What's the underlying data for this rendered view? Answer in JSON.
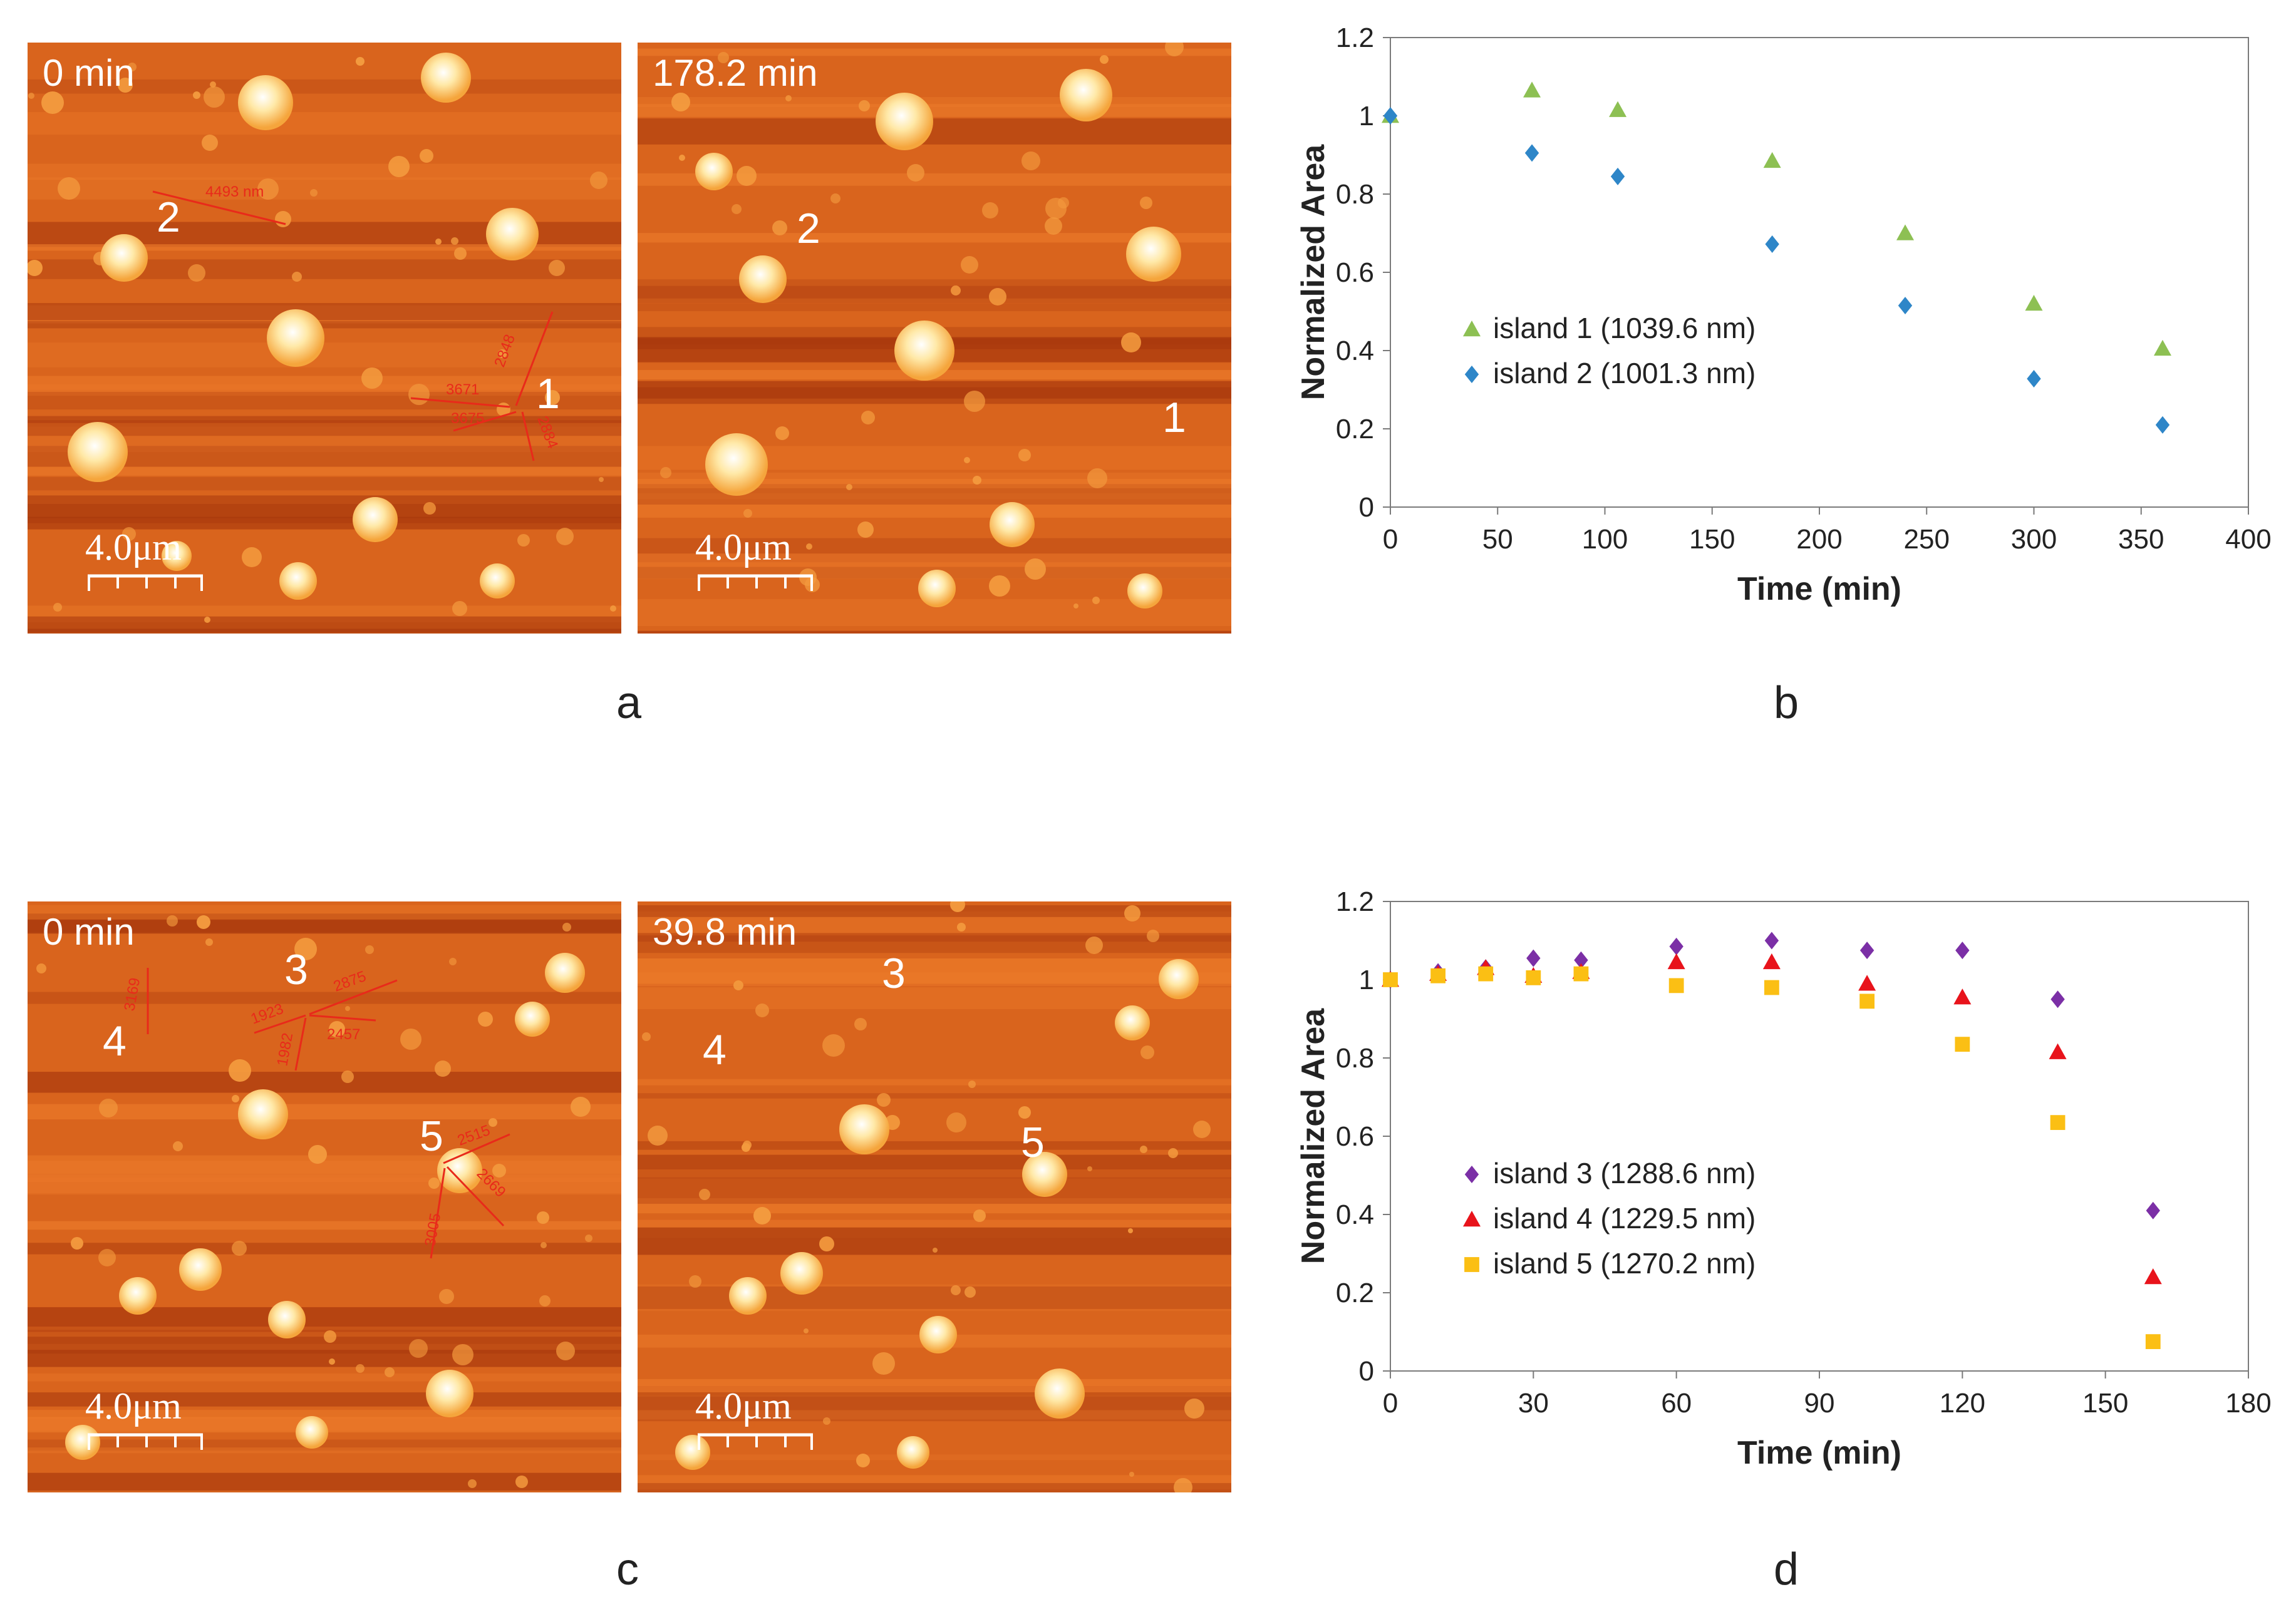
{
  "panels": {
    "a": {
      "letter": "a",
      "left": {
        "time": "0 min",
        "labels": [
          "2",
          "1"
        ],
        "scale": "4.0μm",
        "annotations": [
          "4493 nm",
          "3671",
          "2848",
          "3675",
          "2884"
        ]
      },
      "right": {
        "time": "178.2 min",
        "labels": [
          "2",
          "1"
        ],
        "scale": "4.0μm"
      }
    },
    "b": {
      "letter": "b"
    },
    "c": {
      "letter": "c",
      "left": {
        "time": "0 min",
        "labels": [
          "3",
          "4",
          "5"
        ],
        "scale": "4.0μm",
        "annotations": [
          "1923",
          "2457",
          "2875",
          "3169",
          "1982",
          "2515",
          "2669",
          "3005"
        ]
      },
      "right": {
        "time": "39.8 min",
        "labels": [
          "3",
          "4",
          "5"
        ],
        "scale": "4.0μm"
      }
    },
    "d": {
      "letter": "d"
    }
  },
  "chart_data": [
    {
      "id": "b",
      "type": "scatter",
      "title": "",
      "xlabel": "Time (min)",
      "ylabel": "Normalized Area",
      "xlim": [
        0,
        400
      ],
      "ylim": [
        0,
        1.2
      ],
      "xticks": [
        "0",
        "50",
        "100",
        "150",
        "200",
        "250",
        "300",
        "350",
        "400"
      ],
      "yticks": [
        "0",
        "0.2",
        "0.4",
        "0.6",
        "0.8",
        "1",
        "1.2"
      ],
      "legend_position": "center-left",
      "series": [
        {
          "name": "island 1 (1039.6 nm)",
          "marker": "triangle",
          "color": "#8dc053",
          "x": [
            0,
            66,
            106,
            178,
            240,
            300,
            360
          ],
          "y": [
            1.0,
            1.065,
            1.015,
            0.885,
            0.7,
            0.52,
            0.405
          ]
        },
        {
          "name": "island 2 (1001.3 nm)",
          "marker": "diamond",
          "color": "#2e86c8",
          "x": [
            0,
            66,
            106,
            178,
            240,
            300,
            360
          ],
          "y": [
            1.0,
            0.905,
            0.845,
            0.672,
            0.515,
            0.328,
            0.21
          ]
        }
      ]
    },
    {
      "id": "d",
      "type": "scatter",
      "title": "",
      "xlabel": "Time (min)",
      "ylabel": "Normalized Area",
      "xlim": [
        0,
        180
      ],
      "ylim": [
        0,
        1.2
      ],
      "xticks": [
        "0",
        "30",
        "60",
        "90",
        "120",
        "150",
        "180"
      ],
      "yticks": [
        "0",
        "0.2",
        "0.4",
        "0.6",
        "0.8",
        "1",
        "1.2"
      ],
      "legend_position": "center-left",
      "series": [
        {
          "name": "island 3 (1288.6 nm)",
          "marker": "diamond",
          "color": "#7b2fa6",
          "x": [
            0,
            10,
            20,
            30,
            40,
            60,
            80,
            100,
            120,
            140,
            160
          ],
          "y": [
            1.0,
            1.02,
            1.03,
            1.055,
            1.05,
            1.085,
            1.1,
            1.075,
            1.075,
            0.95,
            0.41
          ]
        },
        {
          "name": "island 4 (1229.5 nm)",
          "marker": "triangle",
          "color": "#e8131b",
          "x": [
            0,
            10,
            20,
            30,
            40,
            60,
            80,
            100,
            120,
            140,
            160
          ],
          "y": [
            1.0,
            1.015,
            1.03,
            1.01,
            1.02,
            1.045,
            1.045,
            0.99,
            0.955,
            0.815,
            0.24
          ]
        },
        {
          "name": "island 5 (1270.2 nm)",
          "marker": "square",
          "color": "#fbbf14",
          "x": [
            0,
            10,
            20,
            30,
            40,
            60,
            80,
            100,
            120,
            140,
            160
          ],
          "y": [
            1.0,
            1.01,
            1.015,
            1.005,
            1.015,
            0.985,
            0.98,
            0.945,
            0.835,
            0.635,
            0.075
          ]
        }
      ]
    }
  ]
}
